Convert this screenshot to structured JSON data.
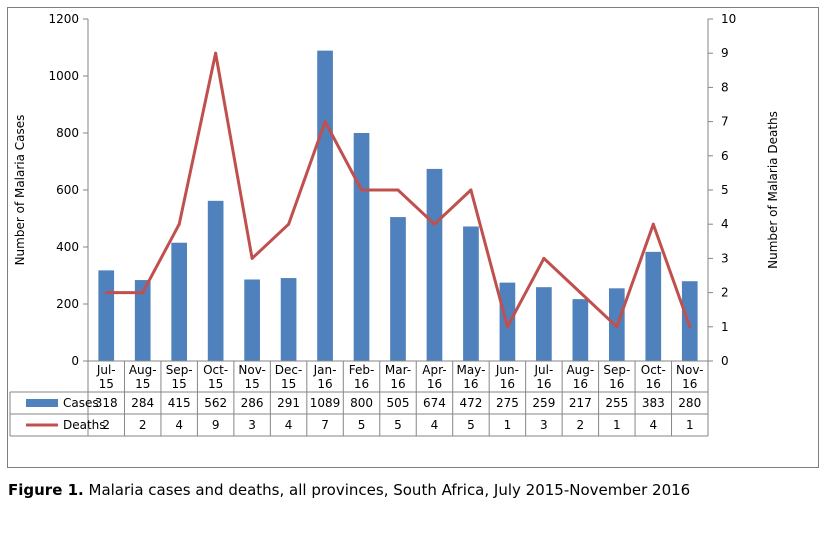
{
  "chart_data": {
    "type": "bar",
    "categories": [
      [
        "Jul-",
        "15"
      ],
      [
        "Aug-",
        "15"
      ],
      [
        "Sep-",
        "15"
      ],
      [
        "Oct-",
        "15"
      ],
      [
        "Nov-",
        "15"
      ],
      [
        "Dec-",
        "15"
      ],
      [
        "Jan-",
        "16"
      ],
      [
        "Feb-",
        "16"
      ],
      [
        "Mar-",
        "16"
      ],
      [
        "Apr-",
        "16"
      ],
      [
        "May-",
        "16"
      ],
      [
        "Jun-",
        "16"
      ],
      [
        "Jul-",
        "16"
      ],
      [
        "Aug-",
        "16"
      ],
      [
        "Sep-",
        "16"
      ],
      [
        "Oct-",
        "16"
      ],
      [
        "Nov-",
        "16"
      ]
    ],
    "series": [
      {
        "name": "Cases",
        "type": "bar",
        "axis": "left",
        "color": "#4f81bd",
        "values": [
          318,
          284,
          415,
          562,
          286,
          291,
          1089,
          800,
          505,
          674,
          472,
          275,
          259,
          217,
          255,
          383,
          280
        ]
      },
      {
        "name": "Deaths",
        "type": "line",
        "axis": "right",
        "color": "#c0504d",
        "values": [
          2,
          2,
          4,
          9,
          3,
          4,
          7,
          5,
          5,
          4,
          5,
          1,
          3,
          2,
          1,
          4,
          1
        ]
      }
    ],
    "ylabel": "Number of Malaria Cases",
    "ylim": [
      0,
      1200
    ],
    "yticks": [
      0,
      200,
      400,
      600,
      800,
      1000,
      1200
    ],
    "y2label": "Number of Malaria Deaths",
    "y2lim": [
      0,
      10
    ],
    "y2ticks": [
      0,
      1,
      2,
      3,
      4,
      5,
      6,
      7,
      8,
      9,
      10
    ],
    "grid": false,
    "legend": "data-table"
  },
  "caption": {
    "label": "Figure 1.",
    "text": " Malaria cases and deaths, all provinces, South Africa, July 2015-November 2016"
  }
}
